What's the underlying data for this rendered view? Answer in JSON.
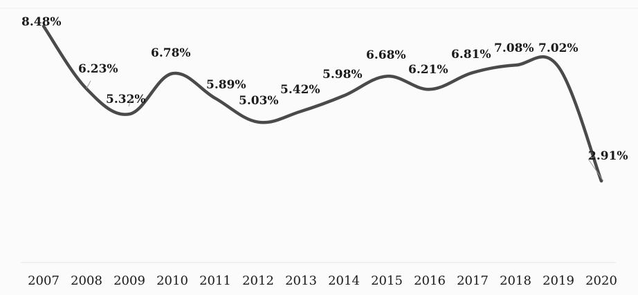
{
  "chart_data": {
    "type": "line",
    "categories": [
      "2007",
      "2008",
      "2009",
      "2010",
      "2011",
      "2012",
      "2013",
      "2014",
      "2015",
      "2016",
      "2017",
      "2018",
      "2019",
      "2020"
    ],
    "series": [
      {
        "values": [
          8.48,
          6.23,
          5.32,
          6.78,
          5.89,
          5.03,
          5.42,
          5.98,
          6.68,
          6.21,
          6.81,
          7.08,
          7.02,
          2.91
        ],
        "data_labels": [
          "8.48%",
          "6.23%",
          "5.32%",
          "6.78%",
          "5.89%",
          "5.03%",
          "5.42%",
          "5.98%",
          "6.68%",
          "6.21%",
          "6.81%",
          "7.08%",
          "7.02%",
          "2.91%"
        ]
      }
    ],
    "title": "",
    "xlabel": "",
    "ylabel": "",
    "ylim": [
      1.5,
      9.0
    ],
    "grid": false,
    "legend": "none",
    "line_color": "#4a4a4a"
  }
}
